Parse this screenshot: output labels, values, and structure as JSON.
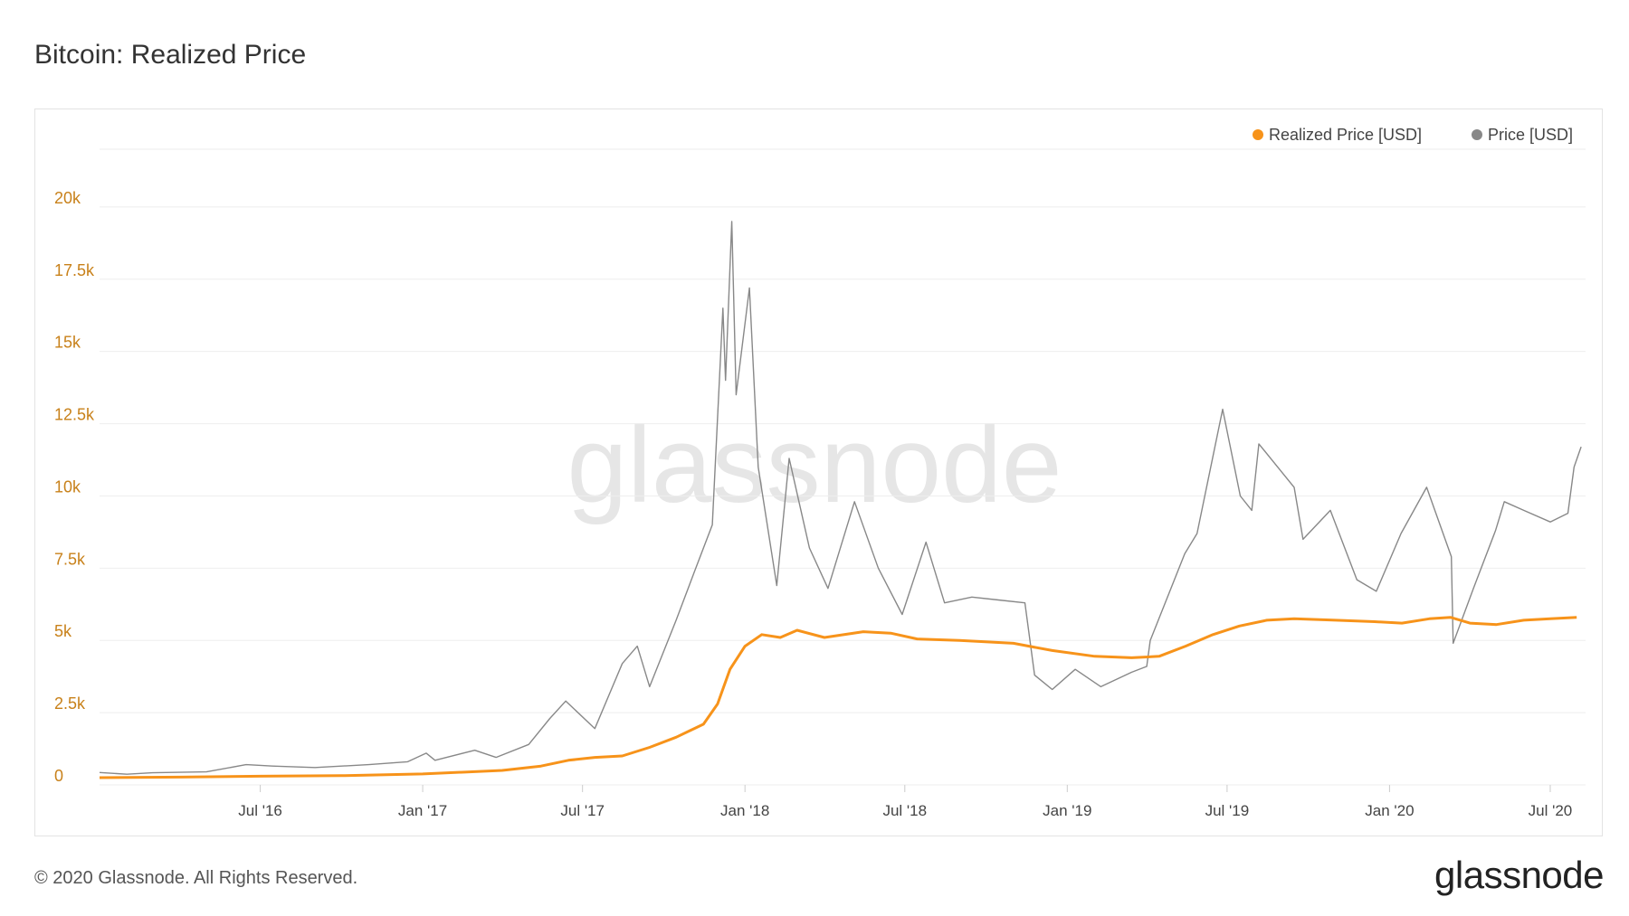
{
  "header": {
    "title": "Bitcoin: Realized Price"
  },
  "footer": {
    "copyright": "© 2020 Glassnode. All Rights Reserved.",
    "brand": "glassnode"
  },
  "watermark": "glassnode",
  "colors": {
    "realized": "#f7931a",
    "price": "#888888",
    "ytick": "#c8811a",
    "grid": "#eeeeee"
  },
  "chart_data": {
    "type": "line",
    "title": "Bitcoin: Realized Price",
    "xlabel": "",
    "ylabel": "",
    "ylim": [
      0,
      22000
    ],
    "yticks": [
      {
        "value": 0,
        "label": "0"
      },
      {
        "value": 2500,
        "label": "2.5k"
      },
      {
        "value": 5000,
        "label": "5k"
      },
      {
        "value": 7500,
        "label": "7.5k"
      },
      {
        "value": 10000,
        "label": "10k"
      },
      {
        "value": 12500,
        "label": "12.5k"
      },
      {
        "value": 15000,
        "label": "15k"
      },
      {
        "value": 17500,
        "label": "17.5k"
      },
      {
        "value": 20000,
        "label": "20k"
      }
    ],
    "xlim": [
      "2016-01-01",
      "2020-08-10"
    ],
    "xticks": [
      {
        "date": "2016-07-01",
        "label": "Jul '16"
      },
      {
        "date": "2017-01-01",
        "label": "Jan '17"
      },
      {
        "date": "2017-07-01",
        "label": "Jul '17"
      },
      {
        "date": "2018-01-01",
        "label": "Jan '18"
      },
      {
        "date": "2018-07-01",
        "label": "Jul '18"
      },
      {
        "date": "2019-01-01",
        "label": "Jan '19"
      },
      {
        "date": "2019-07-01",
        "label": "Jul '19"
      },
      {
        "date": "2020-01-01",
        "label": "Jan '20"
      },
      {
        "date": "2020-07-01",
        "label": "Jul '20"
      }
    ],
    "legend_position": "top-right",
    "grid": true,
    "series": [
      {
        "name": "Realized Price [USD]",
        "color": "#f7931a",
        "points": [
          [
            "2016-01-01",
            250
          ],
          [
            "2016-04-01",
            270
          ],
          [
            "2016-07-01",
            300
          ],
          [
            "2016-10-01",
            320
          ],
          [
            "2017-01-01",
            380
          ],
          [
            "2017-04-01",
            500
          ],
          [
            "2017-05-15",
            650
          ],
          [
            "2017-06-15",
            850
          ],
          [
            "2017-07-15",
            950
          ],
          [
            "2017-08-15",
            1000
          ],
          [
            "2017-09-15",
            1300
          ],
          [
            "2017-10-15",
            1650
          ],
          [
            "2017-11-15",
            2100
          ],
          [
            "2017-12-01",
            2800
          ],
          [
            "2017-12-15",
            4000
          ],
          [
            "2018-01-01",
            4800
          ],
          [
            "2018-01-20",
            5200
          ],
          [
            "2018-02-10",
            5100
          ],
          [
            "2018-03-01",
            5350
          ],
          [
            "2018-04-01",
            5100
          ],
          [
            "2018-05-15",
            5300
          ],
          [
            "2018-06-15",
            5250
          ],
          [
            "2018-07-15",
            5050
          ],
          [
            "2018-09-01",
            5000
          ],
          [
            "2018-11-01",
            4900
          ],
          [
            "2018-12-15",
            4650
          ],
          [
            "2019-02-01",
            4450
          ],
          [
            "2019-03-15",
            4400
          ],
          [
            "2019-04-15",
            4450
          ],
          [
            "2019-05-15",
            4800
          ],
          [
            "2019-06-15",
            5200
          ],
          [
            "2019-07-15",
            5500
          ],
          [
            "2019-08-15",
            5700
          ],
          [
            "2019-09-15",
            5750
          ],
          [
            "2019-11-01",
            5700
          ],
          [
            "2019-12-15",
            5650
          ],
          [
            "2020-01-15",
            5600
          ],
          [
            "2020-02-15",
            5750
          ],
          [
            "2020-03-10",
            5800
          ],
          [
            "2020-04-01",
            5600
          ],
          [
            "2020-05-01",
            5550
          ],
          [
            "2020-06-01",
            5700
          ],
          [
            "2020-07-01",
            5750
          ],
          [
            "2020-07-31",
            5800
          ]
        ]
      },
      {
        "name": "Price [USD]",
        "color": "#888888",
        "points": [
          [
            "2016-01-01",
            430
          ],
          [
            "2016-02-01",
            370
          ],
          [
            "2016-03-01",
            420
          ],
          [
            "2016-05-01",
            450
          ],
          [
            "2016-06-15",
            700
          ],
          [
            "2016-07-15",
            650
          ],
          [
            "2016-09-01",
            600
          ],
          [
            "2016-11-01",
            700
          ],
          [
            "2016-12-15",
            800
          ],
          [
            "2017-01-05",
            1100
          ],
          [
            "2017-01-15",
            850
          ],
          [
            "2017-03-01",
            1200
          ],
          [
            "2017-03-25",
            950
          ],
          [
            "2017-05-01",
            1400
          ],
          [
            "2017-05-25",
            2300
          ],
          [
            "2017-06-12",
            2900
          ],
          [
            "2017-07-15",
            1950
          ],
          [
            "2017-08-15",
            4200
          ],
          [
            "2017-09-01",
            4800
          ],
          [
            "2017-09-15",
            3400
          ],
          [
            "2017-10-15",
            5700
          ],
          [
            "2017-11-05",
            7400
          ],
          [
            "2017-11-25",
            9000
          ],
          [
            "2017-12-07",
            16500
          ],
          [
            "2017-12-10",
            14000
          ],
          [
            "2017-12-17",
            19500
          ],
          [
            "2017-12-22",
            13500
          ],
          [
            "2018-01-06",
            17200
          ],
          [
            "2018-01-16",
            11000
          ],
          [
            "2018-02-06",
            6900
          ],
          [
            "2018-02-20",
            11300
          ],
          [
            "2018-03-15",
            8200
          ],
          [
            "2018-04-05",
            6800
          ],
          [
            "2018-05-05",
            9800
          ],
          [
            "2018-06-01",
            7500
          ],
          [
            "2018-06-28",
            5900
          ],
          [
            "2018-07-25",
            8400
          ],
          [
            "2018-08-15",
            6300
          ],
          [
            "2018-09-15",
            6500
          ],
          [
            "2018-10-15",
            6400
          ],
          [
            "2018-11-14",
            6300
          ],
          [
            "2018-11-25",
            3800
          ],
          [
            "2018-12-15",
            3300
          ],
          [
            "2019-01-10",
            4000
          ],
          [
            "2019-02-08",
            3400
          ],
          [
            "2019-03-15",
            3900
          ],
          [
            "2019-04-01",
            4100
          ],
          [
            "2019-04-05",
            5000
          ],
          [
            "2019-05-14",
            8000
          ],
          [
            "2019-05-28",
            8700
          ],
          [
            "2019-06-26",
            13000
          ],
          [
            "2019-07-16",
            10000
          ],
          [
            "2019-07-29",
            9500
          ],
          [
            "2019-08-06",
            11800
          ],
          [
            "2019-09-15",
            10300
          ],
          [
            "2019-09-25",
            8500
          ],
          [
            "2019-10-26",
            9500
          ],
          [
            "2019-11-25",
            7100
          ],
          [
            "2019-12-17",
            6700
          ],
          [
            "2020-01-14",
            8700
          ],
          [
            "2020-02-12",
            10300
          ],
          [
            "2020-03-11",
            7900
          ],
          [
            "2020-03-13",
            4900
          ],
          [
            "2020-04-05",
            6800
          ],
          [
            "2020-04-30",
            8800
          ],
          [
            "2020-05-10",
            9800
          ],
          [
            "2020-06-01",
            9500
          ],
          [
            "2020-07-01",
            9100
          ],
          [
            "2020-07-21",
            9400
          ],
          [
            "2020-07-28",
            11000
          ],
          [
            "2020-08-05",
            11700
          ]
        ]
      }
    ]
  }
}
